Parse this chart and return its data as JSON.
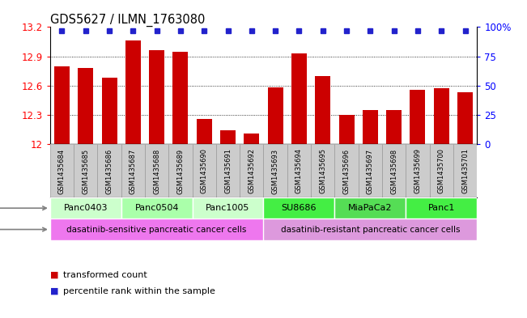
{
  "title": "GDS5627 / ILMN_1763080",
  "samples": [
    "GSM1435684",
    "GSM1435685",
    "GSM1435686",
    "GSM1435687",
    "GSM1435688",
    "GSM1435689",
    "GSM1435690",
    "GSM1435691",
    "GSM1435692",
    "GSM1435693",
    "GSM1435694",
    "GSM1435695",
    "GSM1435696",
    "GSM1435697",
    "GSM1435698",
    "GSM1435699",
    "GSM1435700",
    "GSM1435701"
  ],
  "values": [
    12.8,
    12.78,
    12.68,
    13.06,
    12.96,
    12.95,
    12.26,
    12.14,
    12.11,
    12.58,
    12.93,
    12.7,
    12.3,
    12.35,
    12.35,
    12.56,
    12.57,
    12.53
  ],
  "ylim": [
    12.0,
    13.2
  ],
  "yticks": [
    12.0,
    12.3,
    12.6,
    12.9,
    13.2
  ],
  "yticklabels": [
    "12",
    "12.3",
    "12.6",
    "12.9",
    "13.2"
  ],
  "bar_color": "#cc0000",
  "dot_color": "#2222cc",
  "cell_lines": [
    {
      "name": "Panc0403",
      "start": 0,
      "end": 3,
      "color": "#ccffcc"
    },
    {
      "name": "Panc0504",
      "start": 3,
      "end": 6,
      "color": "#aaffaa"
    },
    {
      "name": "Panc1005",
      "start": 6,
      "end": 9,
      "color": "#ccffcc"
    },
    {
      "name": "SU8686",
      "start": 9,
      "end": 12,
      "color": "#44ee44"
    },
    {
      "name": "MiaPaCa2",
      "start": 12,
      "end": 15,
      "color": "#55dd55"
    },
    {
      "name": "Panc1",
      "start": 15,
      "end": 18,
      "color": "#44ee44"
    }
  ],
  "cell_types": [
    {
      "name": "dasatinib-sensitive pancreatic cancer cells",
      "start": 0,
      "end": 9,
      "color": "#ee77ee"
    },
    {
      "name": "dasatinib-resistant pancreatic cancer cells",
      "start": 9,
      "end": 18,
      "color": "#dd99dd"
    }
  ],
  "sample_box_color": "#cccccc",
  "sample_box_border": "#999999",
  "legend_bar_label": "transformed count",
  "legend_dot_label": "percentile rank within the sample",
  "right_yticks": [
    0,
    25,
    50,
    75,
    100
  ],
  "right_yticklabels": [
    "0",
    "25",
    "50",
    "75",
    "100%"
  ]
}
